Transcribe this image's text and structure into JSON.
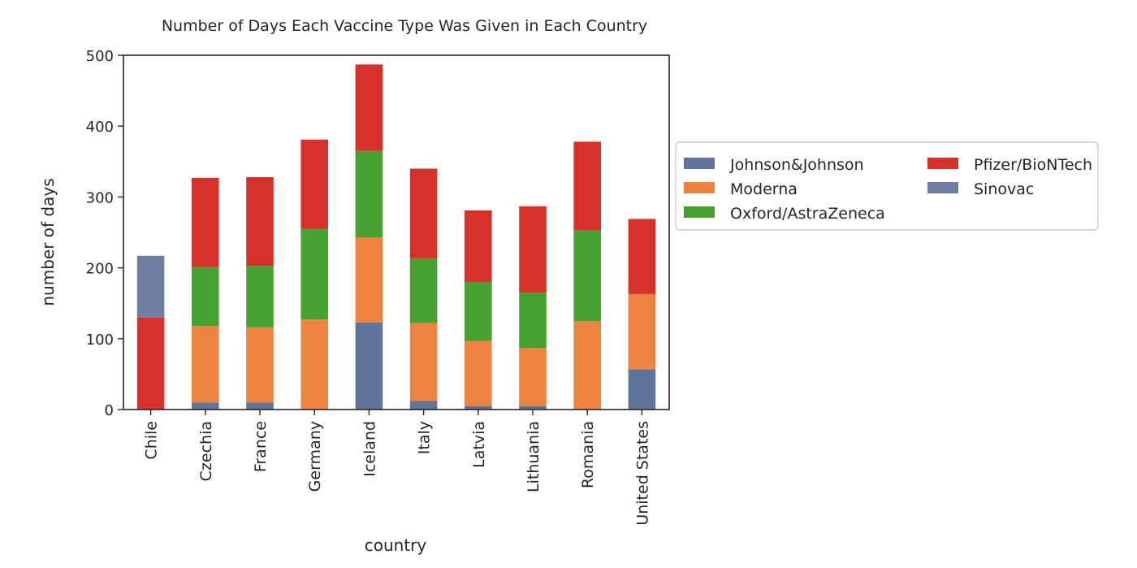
{
  "chart_data": {
    "type": "bar",
    "stacked": true,
    "title": "Number of Days Each Vaccine Type Was Given in Each Country",
    "xlabel": "country",
    "ylabel": "number of days",
    "ylim": [
      0,
      500
    ],
    "yticks": [
      0,
      100,
      200,
      300,
      400,
      500
    ],
    "grid": false,
    "legend_position": "right",
    "categories": [
      "Chile",
      "Czechia",
      "France",
      "Germany",
      "Iceland",
      "Italy",
      "Latvia",
      "Lithuania",
      "Romania",
      "United States"
    ],
    "series": [
      {
        "name": "Johnson&Johnson",
        "color": "#60749a",
        "values": [
          0,
          10,
          10,
          0,
          123,
          12,
          5,
          5,
          0,
          57
        ]
      },
      {
        "name": "Moderna",
        "color": "#ec8340",
        "values": [
          0,
          108,
          106,
          127,
          120,
          110,
          92,
          82,
          125,
          106
        ]
      },
      {
        "name": "Oxford/AstraZeneca",
        "color": "#48a031",
        "values": [
          0,
          83,
          87,
          128,
          122,
          91,
          83,
          78,
          128,
          0
        ]
      },
      {
        "name": "Pfizer/BioNTech",
        "color": "#d8312c",
        "values": [
          130,
          126,
          125,
          126,
          122,
          127,
          101,
          122,
          125,
          106
        ]
      },
      {
        "name": "Sinovac",
        "color": "#6e7fa3",
        "values": [
          87,
          0,
          0,
          0,
          0,
          0,
          0,
          0,
          0,
          0
        ]
      }
    ]
  }
}
